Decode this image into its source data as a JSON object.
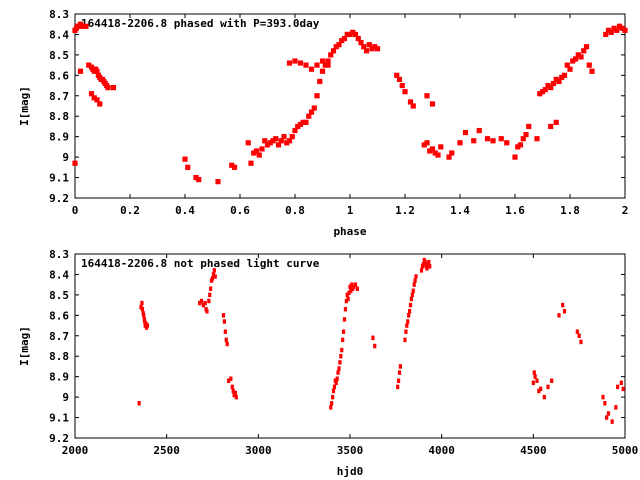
{
  "chart_data": [
    {
      "type": "scatter",
      "title": "164418-2206.8 phased with P=393.0day",
      "xlabel": "phase",
      "ylabel": "I[mag]",
      "xlim": [
        0,
        2
      ],
      "ylim": [
        8.3,
        9.2
      ],
      "y_inverted": true,
      "x_ticks": [
        0,
        0.2,
        0.4,
        0.6,
        0.8,
        1,
        1.2,
        1.4,
        1.6,
        1.8,
        2
      ],
      "y_ticks": [
        8.3,
        8.4,
        8.5,
        8.6,
        8.7,
        8.8,
        8.9,
        9,
        9.1,
        9.2
      ],
      "x_tick_labels": [
        "0",
        "0.2",
        "0.4",
        "0.6",
        "0.8",
        "1",
        "1.2",
        "1.4",
        "1.6",
        "1.8",
        "2"
      ],
      "y_tick_labels": [
        "8.3",
        "8.4",
        "8.5",
        "8.6",
        "8.7",
        "8.8",
        "8.9",
        "9",
        "9.1",
        "9.2"
      ],
      "color": "#ff0000",
      "series": [
        {
          "x": [
            0.0,
            0.005,
            0.01,
            0.015,
            0.02,
            0.03,
            0.04,
            0.05,
            0.06,
            0.065,
            0.07,
            0.075,
            0.08,
            0.085,
            0.09,
            0.095,
            0.1,
            0.105,
            0.11,
            0.115,
            0.12,
            0.02,
            0.06,
            0.07,
            0.08,
            0.09,
            0.14,
            0.0,
            0.4,
            0.41,
            0.44,
            0.45,
            0.52,
            0.57,
            0.58,
            0.63,
            0.64,
            0.65,
            0.66,
            0.67,
            0.68,
            0.69,
            0.7,
            0.71,
            0.72,
            0.73,
            0.74,
            0.75,
            0.76,
            0.77,
            0.78,
            0.79,
            0.8,
            0.81,
            0.82,
            0.83,
            0.84,
            0.85,
            0.86,
            0.87,
            0.88,
            0.89,
            0.9,
            0.91,
            0.92,
            0.93,
            0.94,
            0.95,
            0.96,
            0.97,
            0.98,
            0.99,
            1.0,
            1.01,
            1.02,
            1.03,
            1.04,
            1.05,
            1.06,
            1.07,
            1.08,
            1.09,
            1.1,
            0.78,
            0.8,
            0.82,
            0.84,
            0.86,
            0.88,
            0.9,
            0.92,
            1.17,
            1.18,
            1.19,
            1.2,
            1.22,
            1.23,
            1.27,
            1.28,
            1.29,
            1.3,
            1.31,
            1.32,
            1.33,
            1.36,
            1.37,
            1.4,
            1.42,
            1.45,
            1.47,
            1.5,
            1.52,
            1.55,
            1.57,
            1.6,
            1.61,
            1.62,
            1.63,
            1.64,
            1.65,
            1.68,
            1.69,
            1.7,
            1.71,
            1.72,
            1.73,
            1.74,
            1.75,
            1.76,
            1.77,
            1.78,
            1.79,
            1.8,
            1.81,
            1.82,
            1.83,
            1.84,
            1.85,
            1.86,
            1.87,
            1.73,
            1.75,
            1.88,
            1.93,
            1.94,
            1.95,
            1.96,
            1.97,
            1.98,
            1.99,
            2.0,
            1.28,
            1.3
          ],
          "y": [
            8.38,
            8.37,
            8.36,
            8.36,
            8.35,
            8.36,
            8.36,
            8.55,
            8.56,
            8.57,
            8.58,
            8.57,
            8.58,
            8.6,
            8.61,
            8.62,
            8.62,
            8.63,
            8.64,
            8.65,
            8.66,
            8.58,
            8.69,
            8.71,
            8.72,
            8.74,
            8.66,
            9.03,
            9.01,
            9.05,
            9.1,
            9.11,
            9.12,
            9.04,
            9.05,
            8.93,
            9.03,
            8.98,
            8.97,
            8.99,
            8.96,
            8.92,
            8.94,
            8.93,
            8.92,
            8.91,
            8.94,
            8.92,
            8.9,
            8.93,
            8.92,
            8.9,
            8.87,
            8.85,
            8.84,
            8.83,
            8.83,
            8.8,
            8.78,
            8.76,
            8.7,
            8.63,
            8.58,
            8.55,
            8.53,
            8.5,
            8.48,
            8.46,
            8.45,
            8.43,
            8.42,
            8.4,
            8.4,
            8.39,
            8.4,
            8.42,
            8.44,
            8.46,
            8.48,
            8.45,
            8.47,
            8.46,
            8.47,
            8.54,
            8.53,
            8.54,
            8.55,
            8.57,
            8.55,
            8.53,
            8.55,
            8.6,
            8.62,
            8.65,
            8.68,
            8.73,
            8.75,
            8.94,
            8.93,
            8.97,
            8.96,
            8.98,
            8.99,
            8.95,
            9.0,
            8.98,
            8.93,
            8.88,
            8.92,
            8.87,
            8.91,
            8.92,
            8.91,
            8.93,
            9.0,
            8.95,
            8.94,
            8.91,
            8.89,
            8.85,
            8.91,
            8.69,
            8.68,
            8.67,
            8.65,
            8.66,
            8.64,
            8.62,
            8.63,
            8.61,
            8.6,
            8.55,
            8.57,
            8.53,
            8.52,
            8.5,
            8.51,
            8.48,
            8.46,
            8.55,
            8.85,
            8.83,
            8.58,
            8.4,
            8.38,
            8.39,
            8.37,
            8.38,
            8.36,
            8.37,
            8.38,
            8.7,
            8.74
          ]
        }
      ]
    },
    {
      "type": "scatter",
      "title": "164418-2206.8 not phased light curve",
      "xlabel": "hjd0",
      "ylabel": "I[mag]",
      "xlim": [
        2000,
        5000
      ],
      "ylim": [
        8.3,
        9.2
      ],
      "y_inverted": true,
      "x_ticks": [
        2000,
        2500,
        3000,
        3500,
        4000,
        4500,
        5000
      ],
      "y_ticks": [
        8.3,
        8.4,
        8.5,
        8.6,
        8.7,
        8.8,
        8.9,
        9,
        9.1,
        9.2
      ],
      "x_tick_labels": [
        "2000",
        "2500",
        "3000",
        "3500",
        "4000",
        "4500",
        "5000"
      ],
      "y_tick_labels": [
        "8.3",
        "8.4",
        "8.5",
        "8.6",
        "8.7",
        "8.8",
        "8.9",
        "9",
        "9.1",
        "9.2"
      ],
      "color": "#ff0000",
      "series": [
        {
          "x": [
            2350,
            2360,
            2365,
            2368,
            2372,
            2375,
            2378,
            2380,
            2383,
            2387,
            2390,
            2395,
            2680,
            2690,
            2700,
            2710,
            2715,
            2720,
            2730,
            2735,
            2740,
            2745,
            2750,
            2755,
            2760,
            2765,
            2810,
            2815,
            2820,
            2825,
            2830,
            2838,
            2850,
            2858,
            2863,
            2868,
            2875,
            2880,
            3395,
            3400,
            3405,
            3410,
            3415,
            3420,
            3425,
            3430,
            3435,
            3440,
            3445,
            3450,
            3455,
            3460,
            3465,
            3470,
            3475,
            3480,
            3485,
            3490,
            3495,
            3500,
            3505,
            3510,
            3515,
            3520,
            3530,
            3540,
            3625,
            3635,
            3760,
            3765,
            3770,
            3775,
            3800,
            3805,
            3810,
            3815,
            3820,
            3825,
            3830,
            3835,
            3840,
            3845,
            3850,
            3855,
            3860,
            3890,
            3895,
            3900,
            3905,
            3910,
            3915,
            3920,
            3925,
            3930,
            3935,
            4500,
            4505,
            4510,
            4520,
            4530,
            4540,
            4560,
            4580,
            4600,
            4640,
            4660,
            4670,
            4740,
            4750,
            4760,
            4880,
            4890,
            4900,
            4910,
            4930,
            4950,
            4960,
            4980,
            4990
          ],
          "y": [
            9.03,
            8.56,
            8.54,
            8.57,
            8.59,
            8.6,
            8.62,
            8.63,
            8.65,
            8.64,
            8.66,
            8.65,
            8.54,
            8.53,
            8.55,
            8.54,
            8.57,
            8.58,
            8.53,
            8.5,
            8.47,
            8.43,
            8.42,
            8.4,
            8.38,
            8.41,
            8.6,
            8.63,
            8.68,
            8.72,
            8.74,
            8.92,
            8.91,
            8.95,
            8.97,
            8.99,
            8.98,
            9.0,
            9.05,
            9.03,
            9.0,
            8.97,
            8.95,
            8.92,
            8.93,
            8.91,
            8.88,
            8.86,
            8.83,
            8.8,
            8.77,
            8.72,
            8.68,
            8.62,
            8.57,
            8.53,
            8.5,
            8.52,
            8.49,
            8.46,
            8.48,
            8.45,
            8.47,
            8.46,
            8.45,
            8.47,
            8.71,
            8.75,
            8.95,
            8.92,
            8.88,
            8.85,
            8.72,
            8.68,
            8.65,
            8.63,
            8.6,
            8.58,
            8.55,
            8.52,
            8.5,
            8.48,
            8.45,
            8.43,
            8.41,
            8.38,
            8.36,
            8.35,
            8.33,
            8.34,
            8.36,
            8.37,
            8.35,
            8.34,
            8.36,
            8.93,
            8.88,
            8.9,
            8.92,
            8.97,
            8.96,
            9.0,
            8.95,
            8.92,
            8.6,
            8.55,
            8.58,
            8.68,
            8.7,
            8.73,
            9.0,
            9.03,
            9.1,
            9.08,
            9.12,
            9.05,
            8.95,
            8.93,
            8.96
          ]
        }
      ]
    }
  ]
}
